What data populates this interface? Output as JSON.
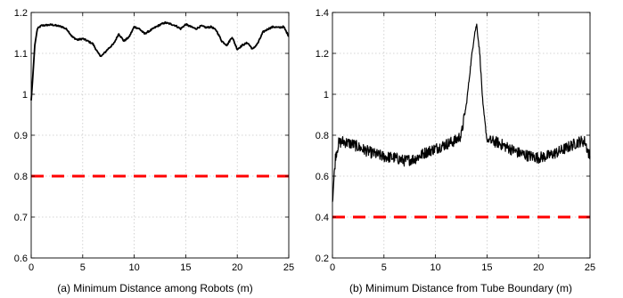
{
  "chart_data": [
    {
      "type": "line",
      "caption": "(a) Minimum Distance among Robots (m)",
      "xlim": [
        0,
        25
      ],
      "ylim": [
        0.6,
        1.2
      ],
      "xticks": [
        0,
        5,
        10,
        15,
        20,
        25
      ],
      "yticks": [
        0.6,
        0.7,
        0.8,
        0.9,
        1,
        1.1,
        1.2
      ],
      "xtick_labels": [
        "0",
        "5",
        "10",
        "15",
        "20",
        "25"
      ],
      "ytick_labels": [
        "0.6",
        "0.7",
        "0.8",
        "0.9",
        "1",
        "1.1",
        "1.2"
      ],
      "grid": true,
      "series": [
        {
          "style": "solid",
          "color": "#000000",
          "x": [
            0,
            0.15,
            0.35,
            0.6,
            1,
            2,
            3,
            3.5,
            4,
            4.5,
            5,
            5.5,
            6,
            6.5,
            6.8,
            7,
            7.5,
            8,
            8.5,
            9,
            9.5,
            10,
            10.5,
            11,
            11.5,
            12,
            12.5,
            13,
            13.5,
            14,
            14.5,
            15,
            15.5,
            16,
            16.5,
            17,
            17.5,
            18,
            18.5,
            19,
            19.5,
            20,
            20.5,
            21,
            21.5,
            22,
            22.5,
            23,
            23.5,
            24,
            24.5,
            25
          ],
          "y": [
            0.985,
            1.04,
            1.12,
            1.16,
            1.168,
            1.17,
            1.165,
            1.158,
            1.14,
            1.133,
            1.136,
            1.13,
            1.123,
            1.1,
            1.093,
            1.098,
            1.112,
            1.123,
            1.148,
            1.13,
            1.14,
            1.165,
            1.16,
            1.148,
            1.155,
            1.163,
            1.17,
            1.175,
            1.172,
            1.168,
            1.16,
            1.171,
            1.165,
            1.16,
            1.167,
            1.163,
            1.165,
            1.155,
            1.13,
            1.12,
            1.14,
            1.11,
            1.12,
            1.126,
            1.11,
            1.125,
            1.152,
            1.16,
            1.165,
            1.163,
            1.165,
            1.142
          ]
        },
        {
          "style": "dashed",
          "color": "#ff0000",
          "x": [
            0,
            25
          ],
          "y": [
            0.8,
            0.8
          ]
        }
      ]
    },
    {
      "type": "line",
      "caption": "(b) Minimum Distance from Tube Boundary (m)",
      "xlim": [
        0,
        25
      ],
      "ylim": [
        0.2,
        1.4
      ],
      "xticks": [
        0,
        5,
        10,
        15,
        20,
        25
      ],
      "yticks": [
        0.2,
        0.4,
        0.6,
        0.8,
        1,
        1.2,
        1.4
      ],
      "xtick_labels": [
        "0",
        "5",
        "10",
        "15",
        "20",
        "25"
      ],
      "ytick_labels": [
        "0.2",
        "0.4",
        "0.6",
        "0.8",
        "1",
        "1.2",
        "1.4"
      ],
      "grid": true,
      "series": [
        {
          "style": "solid",
          "color": "#000000",
          "noisy": true,
          "x": [
            0,
            0.1,
            0.3,
            0.6,
            1,
            2,
            3,
            4,
            5,
            6,
            7,
            8,
            9,
            10,
            11,
            12,
            12.5,
            13,
            13.5,
            13.8,
            14,
            14.3,
            14.6,
            15,
            15.5,
            16,
            17,
            18,
            19,
            20,
            21,
            22,
            23,
            24,
            24.5,
            25
          ],
          "y": [
            0.48,
            0.55,
            0.7,
            0.76,
            0.77,
            0.755,
            0.73,
            0.71,
            0.695,
            0.69,
            0.675,
            0.685,
            0.715,
            0.735,
            0.755,
            0.775,
            0.8,
            0.95,
            1.18,
            1.3,
            1.34,
            1.2,
            0.95,
            0.775,
            0.77,
            0.765,
            0.74,
            0.715,
            0.7,
            0.69,
            0.7,
            0.72,
            0.745,
            0.77,
            0.77,
            0.69
          ]
        },
        {
          "style": "dashed",
          "color": "#ff0000",
          "x": [
            0,
            25
          ],
          "y": [
            0.4,
            0.4
          ]
        }
      ]
    }
  ]
}
